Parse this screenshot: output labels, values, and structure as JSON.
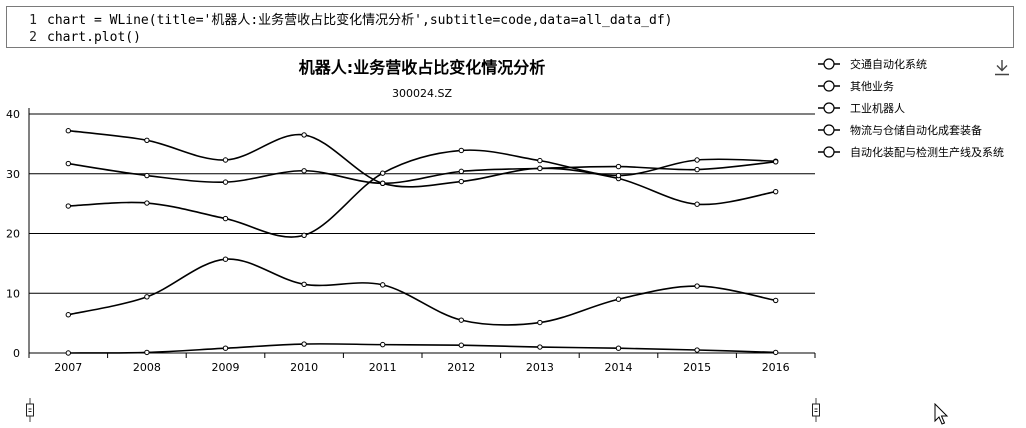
{
  "code": {
    "lines": [
      {
        "num": "1",
        "text": "chart = WLine(title='机器人:业务营收占比变化情况分析',subtitle=code,data=all_data_df)"
      },
      {
        "num": "2",
        "text": "chart.plot()"
      }
    ]
  },
  "icons": {
    "download": "download-icon",
    "cursor": "mouse-pointer-icon",
    "slider": "range-slider-handle-icon"
  },
  "chart_data": {
    "type": "line",
    "title": "机器人:业务营收占比变化情况分析",
    "subtitle": "300024.SZ",
    "xlabel": "",
    "ylabel": "",
    "categories": [
      "2007",
      "2008",
      "2009",
      "2010",
      "2011",
      "2012",
      "2013",
      "2014",
      "2015",
      "2016"
    ],
    "yticks": [
      "0",
      "10",
      "20",
      "30",
      "40"
    ],
    "ylim": [
      0,
      40
    ],
    "grid": "horizontal",
    "legend_position": "right",
    "line_color": "#000000",
    "series": [
      {
        "name": "交通自动化系统",
        "values": [
          37.2,
          35.6,
          32.3,
          36.5,
          28.4,
          28.7,
          30.9,
          29.2,
          24.9,
          27.0
        ]
      },
      {
        "name": "其他业务",
        "values": [
          0.0,
          0.1,
          0.8,
          1.5,
          1.4,
          1.3,
          1.0,
          0.8,
          0.5,
          0.1
        ]
      },
      {
        "name": "工业机器人",
        "values": [
          6.4,
          9.4,
          15.7,
          11.5,
          11.4,
          5.5,
          5.1,
          9.0,
          11.2,
          8.8
        ]
      },
      {
        "name": "物流与仓储自动化成套装备",
        "values": [
          24.6,
          25.1,
          22.5,
          19.7,
          30.1,
          33.9,
          32.2,
          29.7,
          32.3,
          32.1
        ]
      },
      {
        "name": "自动化装配与检测生产线及系统",
        "values": [
          31.7,
          29.7,
          28.6,
          30.5,
          28.4,
          30.4,
          30.9,
          31.2,
          30.7,
          32.0
        ]
      }
    ]
  }
}
